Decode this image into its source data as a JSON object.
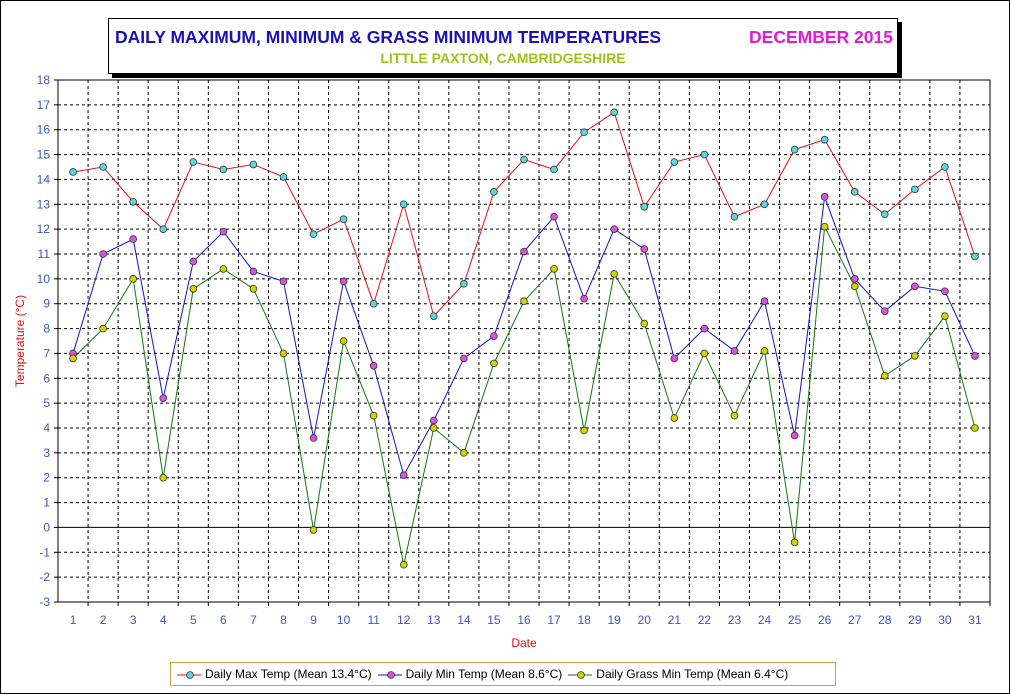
{
  "title": {
    "main": "DAILY MAXIMUM, MINIMUM & GRASS MINIMUM TEMPERATURES",
    "month": "DECEMBER 2015",
    "subtitle": "LITTLE PAXTON, CAMBRIDGESHIRE"
  },
  "colors": {
    "title": "#1a12b8",
    "month": "#e21ad8",
    "subtitle": "#9ac41a",
    "axis_label": "#e01010",
    "tick_label": "#3a55c8"
  },
  "chart_data": {
    "type": "line",
    "title": "DAILY MAXIMUM, MINIMUM & GRASS MINIMUM TEMPERATURES",
    "subtitle": "LITTLE PAXTON, CAMBRIDGESHIRE",
    "xlabel": "Date",
    "ylabel": "Temperature (°C)",
    "ylim": [
      -3,
      18
    ],
    "yticks": [
      -3,
      -2,
      -1,
      0,
      1,
      2,
      3,
      4,
      5,
      6,
      7,
      8,
      9,
      10,
      11,
      12,
      13,
      14,
      15,
      16,
      17,
      18
    ],
    "grid": true,
    "legend_position": "bottom",
    "x": [
      1,
      2,
      3,
      4,
      5,
      6,
      7,
      8,
      9,
      10,
      11,
      12,
      13,
      14,
      15,
      16,
      17,
      18,
      19,
      20,
      21,
      22,
      23,
      24,
      25,
      26,
      27,
      28,
      29,
      30,
      31
    ],
    "series": [
      {
        "name": "Daily Max Temp (Mean 13.4°C)",
        "line_color": "#dd1111",
        "marker_color": "#5ed6e0",
        "values": [
          14.3,
          14.5,
          13.1,
          12.0,
          14.7,
          14.4,
          14.6,
          14.1,
          11.8,
          12.4,
          9.0,
          13.0,
          8.5,
          9.8,
          13.5,
          14.8,
          14.4,
          15.9,
          16.7,
          12.9,
          14.7,
          15.0,
          12.5,
          13.0,
          15.2,
          15.6,
          13.5,
          12.6,
          13.6,
          14.5,
          10.9
        ]
      },
      {
        "name": "Daily Min Temp (Mean 8.6°C)",
        "line_color": "#1111cc",
        "marker_color": "#e050e0",
        "values": [
          7.0,
          11.0,
          11.6,
          5.2,
          10.7,
          11.9,
          10.3,
          9.9,
          3.6,
          9.9,
          6.5,
          2.1,
          4.3,
          6.8,
          7.7,
          11.1,
          12.5,
          9.2,
          12.0,
          11.2,
          6.8,
          8.0,
          7.1,
          9.1,
          3.7,
          13.3,
          10.0,
          8.7,
          9.7,
          9.5,
          6.9
        ]
      },
      {
        "name": "Daily Grass Min Temp (Mean 6.4°C)",
        "line_color": "#117711",
        "marker_color": "#d4d400",
        "values": [
          6.8,
          8.0,
          10.0,
          2.0,
          9.6,
          10.4,
          9.6,
          7.0,
          -0.1,
          7.5,
          4.5,
          -1.5,
          4.0,
          3.0,
          6.6,
          9.1,
          10.4,
          3.9,
          10.2,
          8.2,
          4.4,
          7.0,
          4.5,
          7.1,
          -0.6,
          12.1,
          9.7,
          6.1,
          6.9,
          8.5,
          4.0
        ]
      }
    ]
  }
}
